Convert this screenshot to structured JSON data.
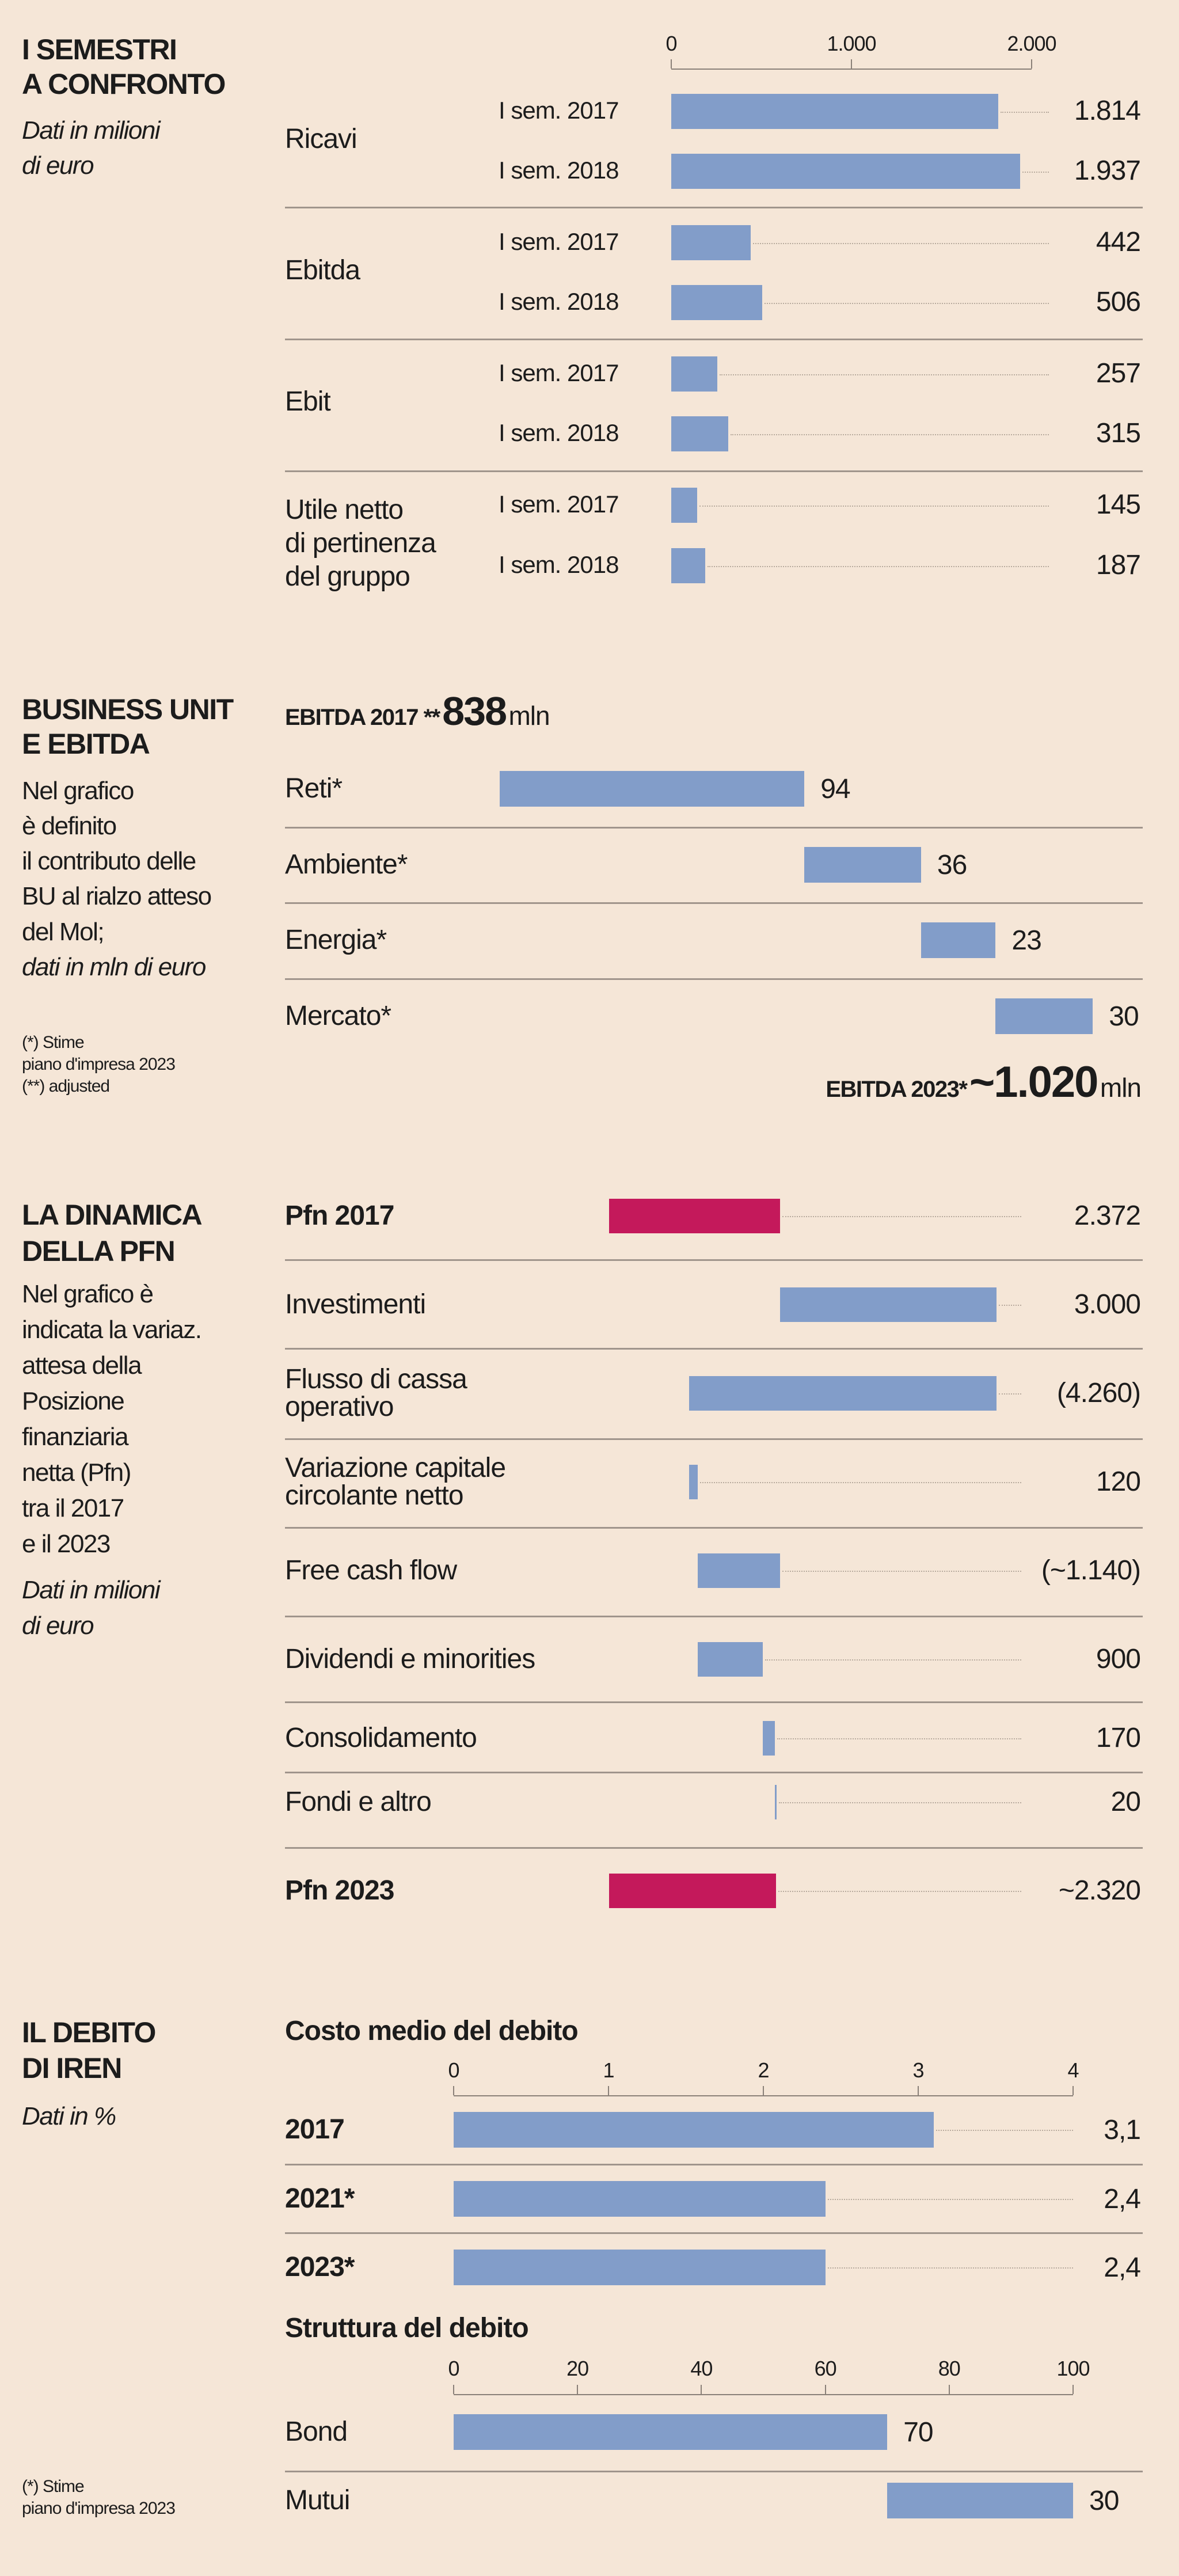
{
  "colors": {
    "background": "#F5E6D7",
    "bar": "#829DC9",
    "pfn_bar": "#C4195B",
    "text": "#1c1c1c"
  },
  "section1": {
    "title": [
      "I SEMESTRI",
      "A CONFRONTO"
    ],
    "subtitle": [
      "Dati in milioni",
      "di euro"
    ]
  },
  "section2": {
    "title": [
      "BUSINESS UNIT",
      "E EBITDA"
    ],
    "text": [
      "Nel grafico",
      "è definito",
      "il contributo delle",
      "BU al rialzo atteso",
      "del Mol;"
    ],
    "subtitle": "dati in mln di euro",
    "footnotes": [
      "(*) Stime",
      "piano d'impresa 2023",
      "(**) adjusted"
    ],
    "start_label": "EBITDA 2017 **",
    "start_value": "838",
    "start_unit": "mln",
    "end_label": "EBITDA 2023*",
    "end_value": "~1.020",
    "end_unit": "mln"
  },
  "section3": {
    "title": [
      "LA DINAMICA",
      "DELLA PFN"
    ],
    "text": [
      "Nel grafico è",
      "indicata la variaz.",
      "attesa della",
      "Posizione",
      "finanziaria",
      "netta (Pfn)",
      "tra il 2017",
      "e il 2023"
    ],
    "subtitle": [
      "Dati in milioni",
      "di euro"
    ]
  },
  "section4": {
    "title": [
      "IL DEBITO",
      "DI IREN"
    ],
    "subtitle": "Dati in %",
    "footnotes": [
      "(*) Stime",
      "piano d'impresa 2023"
    ]
  },
  "chart_data": [
    {
      "type": "bar",
      "orientation": "horizontal",
      "title": "I SEMESTRI A CONFRONTO",
      "xlim": [
        0,
        2000
      ],
      "ticks": [
        "0",
        "1.000",
        "2.000"
      ],
      "tick_values": [
        0,
        1000,
        2000
      ],
      "groups": [
        {
          "name": "Ricavi",
          "rows": [
            {
              "label": "I sem. 2017",
              "value": 1814,
              "text": "1.814"
            },
            {
              "label": "I sem. 2018",
              "value": 1937,
              "text": "1.937"
            }
          ]
        },
        {
          "name": "Ebitda",
          "rows": [
            {
              "label": "I sem. 2017",
              "value": 442,
              "text": "442"
            },
            {
              "label": "I sem. 2018",
              "value": 506,
              "text": "506"
            }
          ]
        },
        {
          "name": "Ebit",
          "rows": [
            {
              "label": "I sem. 2017",
              "value": 257,
              "text": "257"
            },
            {
              "label": "I sem. 2018",
              "value": 315,
              "text": "315"
            }
          ]
        },
        {
          "name": "Utile netto\ndi pertinenza\ndel gruppo",
          "rows": [
            {
              "label": "I sem. 2017",
              "value": 145,
              "text": "145"
            },
            {
              "label": "I sem. 2018",
              "value": 187,
              "text": "187"
            }
          ]
        }
      ]
    },
    {
      "type": "bar",
      "subtype": "waterfall",
      "title": "BUSINESS UNIT E EBITDA",
      "start": 838,
      "end": 1020,
      "categories": [
        "Reti*",
        "Ambiente*",
        "Energia*",
        "Mercato*"
      ],
      "values": [
        94,
        36,
        23,
        30
      ],
      "labels": [
        "94",
        "36",
        "23",
        "30"
      ]
    },
    {
      "type": "bar",
      "subtype": "waterfall",
      "title": "LA DINAMICA DELLA PFN",
      "rows": [
        {
          "label": "Pfn 2017",
          "from": 0,
          "to": 2372,
          "text": "2.372",
          "total": true
        },
        {
          "label": "Investimenti",
          "from": 2372,
          "to": 5372,
          "text": "3.000"
        },
        {
          "label": "Flusso di cassa\noperativo",
          "from": 1112,
          "to": 5372,
          "text": "(4.260)"
        },
        {
          "label": "Variazione capitale\ncircolante netto",
          "from": 1112,
          "to": 1232,
          "text": "120"
        },
        {
          "label": "Free cash flow",
          "from": 1232,
          "to": 2372,
          "text": "(~1.140)"
        },
        {
          "label": "Dividendi e minorities",
          "from": 1232,
          "to": 2132,
          "text": "900"
        },
        {
          "label": "Consolidamento",
          "from": 2132,
          "to": 2302,
          "text": "170"
        },
        {
          "label": "Fondi e altro",
          "from": 2302,
          "to": 2322,
          "text": "20"
        },
        {
          "label": "Pfn 2023",
          "from": 0,
          "to": 2320,
          "text": "~2.320",
          "total": true
        }
      ]
    },
    {
      "type": "bar",
      "orientation": "horizontal",
      "title": "Costo medio del debito",
      "xlim": [
        0,
        4
      ],
      "ticks": [
        "0",
        "1",
        "2",
        "3",
        "4"
      ],
      "tick_values": [
        0,
        1,
        2,
        3,
        4
      ],
      "categories": [
        "2017",
        "2021*",
        "2023*"
      ],
      "values": [
        3.1,
        2.4,
        2.4
      ],
      "labels": [
        "3,1",
        "2,4",
        "2,4"
      ]
    },
    {
      "type": "bar",
      "subtype": "stacked-waterfall",
      "title": "Struttura del debito",
      "xlim": [
        0,
        100
      ],
      "ticks": [
        "0",
        "20",
        "40",
        "60",
        "80",
        "100"
      ],
      "tick_values": [
        0,
        20,
        40,
        60,
        80,
        100
      ],
      "categories": [
        "Bond",
        "Mutui"
      ],
      "values": [
        70,
        30
      ],
      "labels": [
        "70",
        "30"
      ]
    }
  ]
}
